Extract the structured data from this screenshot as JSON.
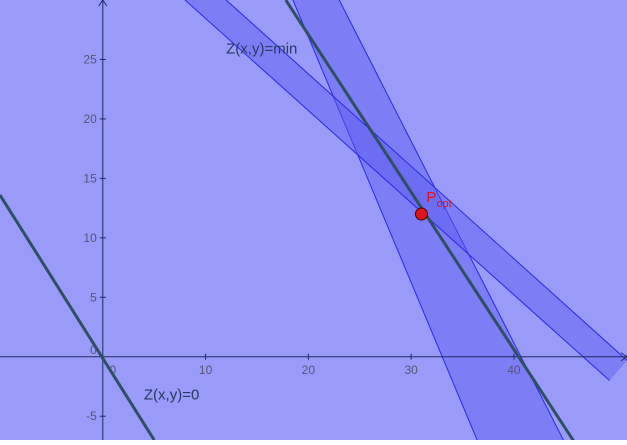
{
  "plot": {
    "background": "#9a9af9",
    "x_range": [
      -10,
      51
    ],
    "y_range": [
      -7,
      30
    ]
  },
  "axes": {
    "x_ticks": [
      {
        "value": 0,
        "label": "0"
      },
      {
        "value": 10,
        "label": "10"
      },
      {
        "value": 20,
        "label": "20"
      },
      {
        "value": 30,
        "label": "30"
      },
      {
        "value": 40,
        "label": "40"
      }
    ],
    "y_ticks": [
      {
        "value": -5,
        "label": "-5"
      },
      {
        "value": 5,
        "label": "5"
      },
      {
        "value": 10,
        "label": "10"
      },
      {
        "value": 15,
        "label": "15"
      },
      {
        "value": 20,
        "label": "20"
      },
      {
        "value": 25,
        "label": "25"
      }
    ],
    "origin_y_label": "0"
  },
  "regions": {
    "fill_color": "#5a5af2",
    "fill_opacity": 0.45,
    "edge_color": "#2a2ae6",
    "bands": [
      {
        "name": "band-steep",
        "lines": [
          [
            [
              18.5,
              30
            ],
            [
              36.9,
              -8
            ]
          ],
          [
            [
              23,
              30
            ],
            [
              45.4,
              -8
            ]
          ]
        ]
      },
      {
        "name": "band-moderate",
        "lines": [
          [
            [
              8,
              30
            ],
            [
              49.3,
              -2
            ]
          ],
          [
            [
              12,
              30
            ],
            [
              51,
              -0.3
            ]
          ]
        ]
      }
    ]
  },
  "objective_lines": {
    "color": "#2f4f63",
    "zero": {
      "label": "Z(x,y)=0",
      "from": [
        -10,
        13.6
      ],
      "to": [
        5,
        -7
      ]
    },
    "min": {
      "label": "Z(x,y)=min",
      "from": [
        17.8,
        30
      ],
      "to": [
        46.5,
        -8
      ]
    }
  },
  "optimum": {
    "label_main": "P",
    "label_sub": "opt",
    "x": 31,
    "y": 12,
    "color": "#e0121c"
  }
}
